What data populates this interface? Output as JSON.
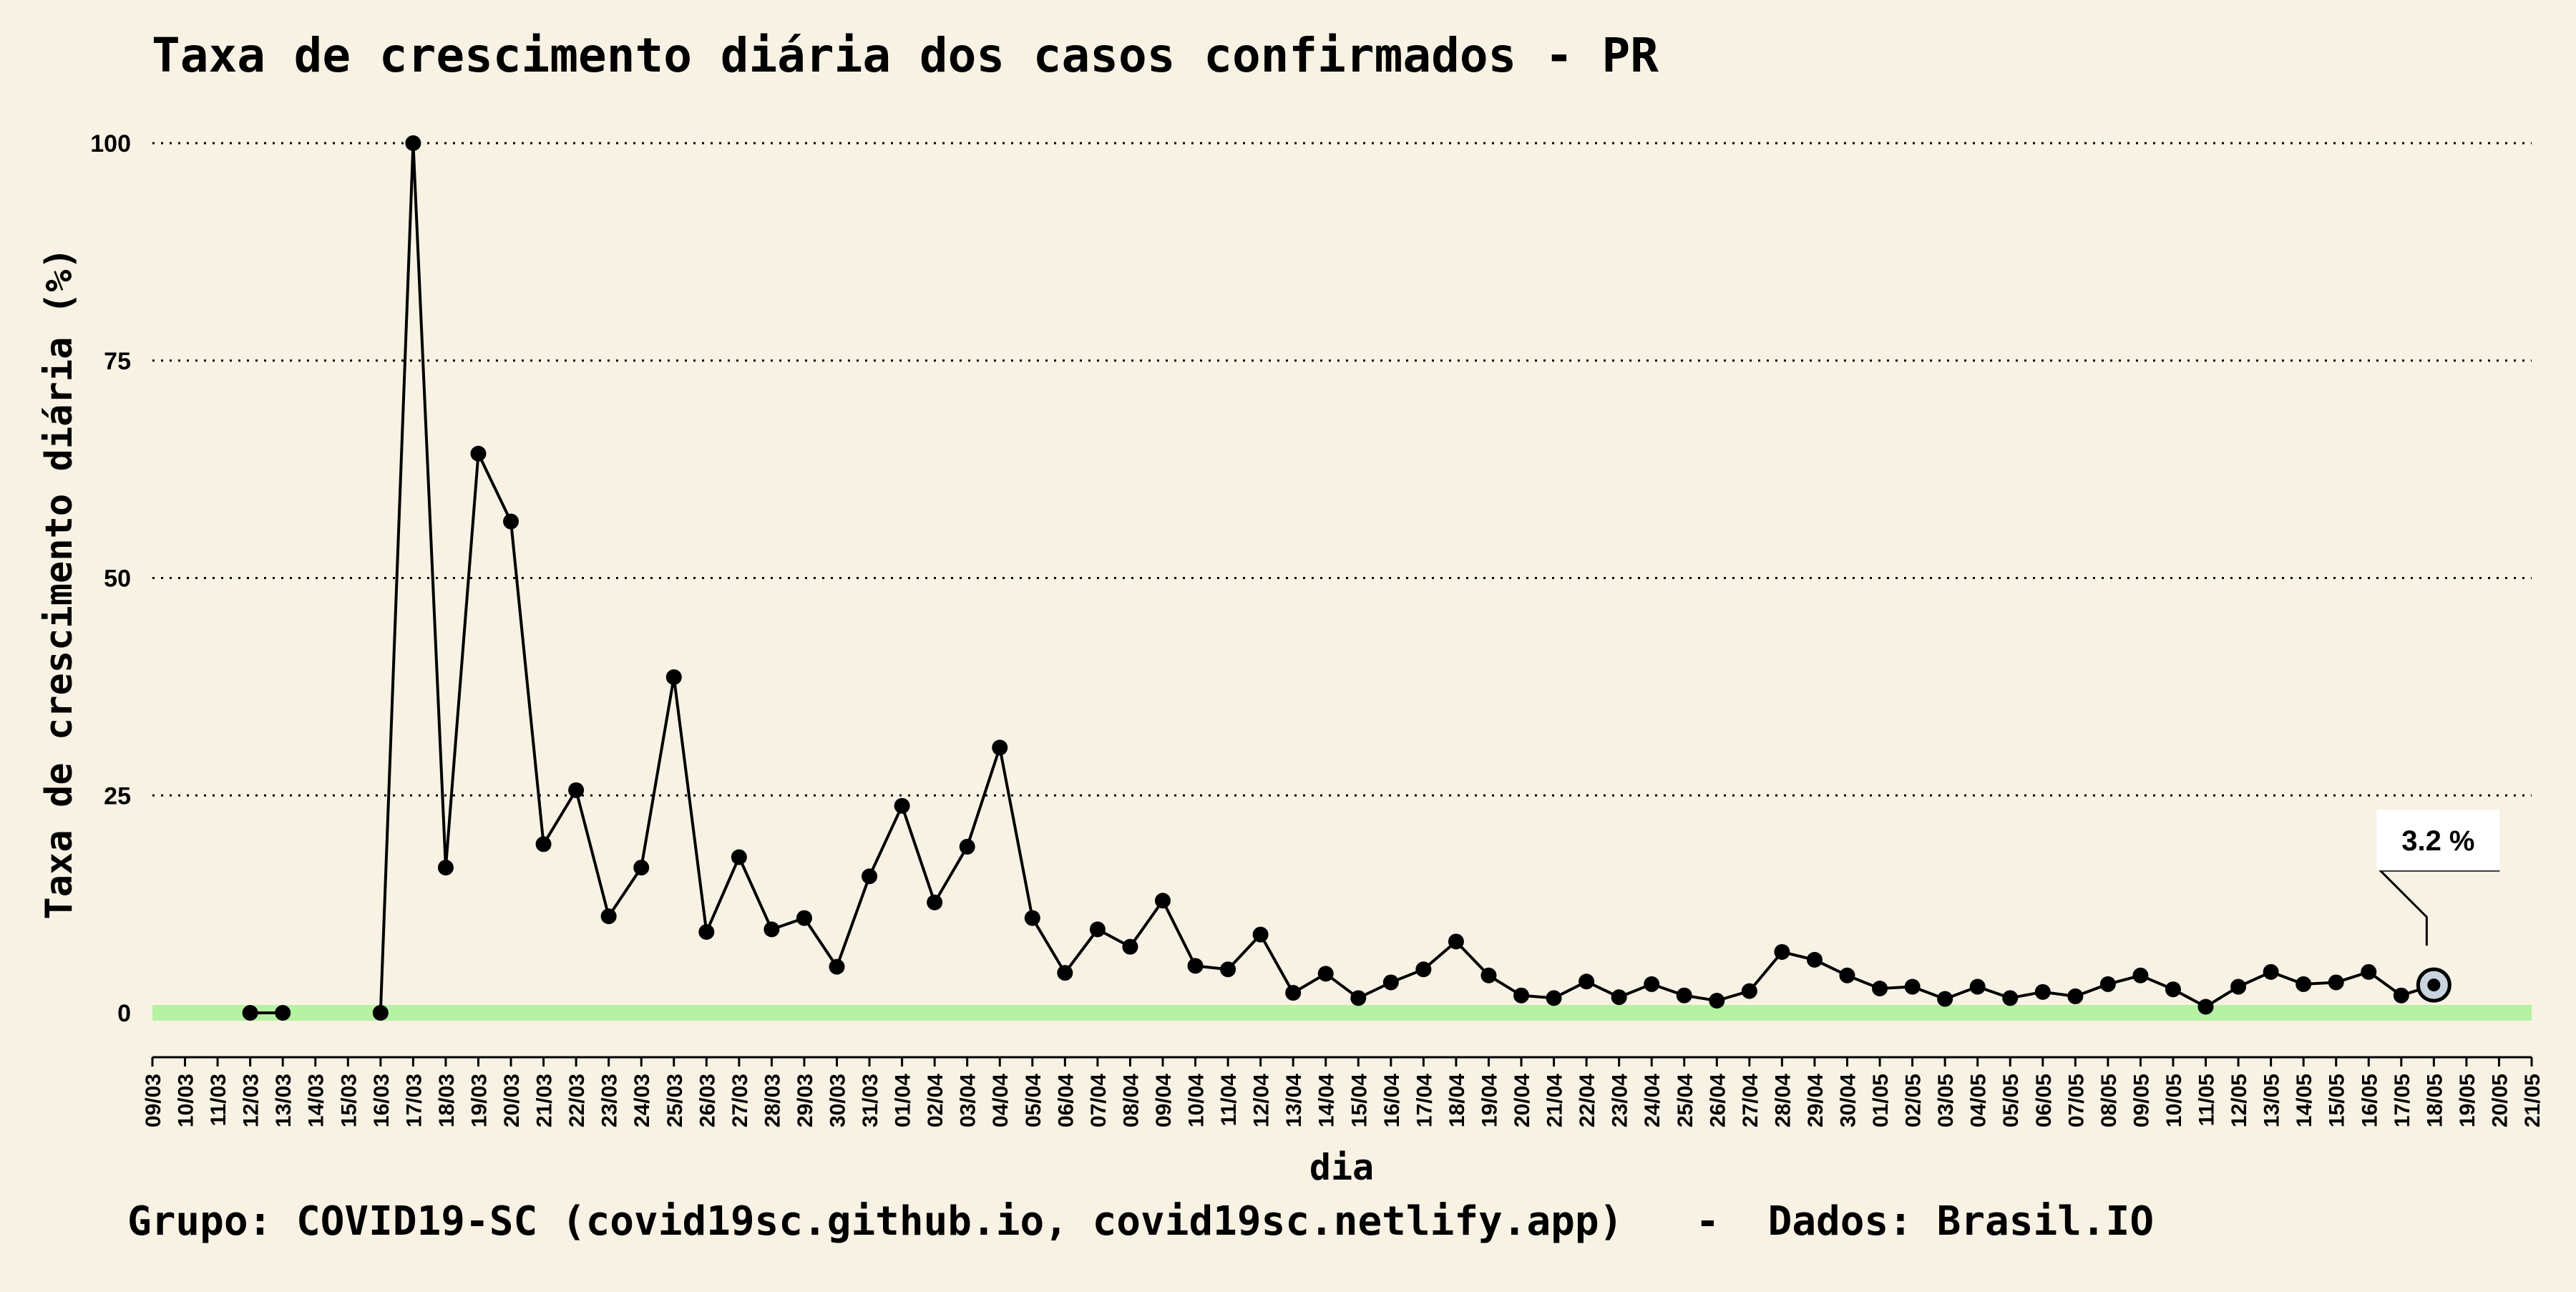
{
  "chart_data": {
    "type": "line",
    "title": "Taxa de crescimento diária dos casos confirmados - PR",
    "xlabel": "dia",
    "ylabel": "Taxa de crescimento diária (%)",
    "caption": "Grupo: COVID19-SC (covid19sc.github.io, covid19sc.netlify.app)   -  Dados: Brasil.IO",
    "ylim": [
      0,
      100
    ],
    "yticks": [
      0,
      25,
      50,
      75,
      100
    ],
    "grid": "horizontal dotted",
    "categories": [
      "09/03",
      "10/03",
      "11/03",
      "12/03",
      "13/03",
      "14/03",
      "15/03",
      "16/03",
      "17/03",
      "18/03",
      "19/03",
      "20/03",
      "21/03",
      "22/03",
      "23/03",
      "24/03",
      "25/03",
      "26/03",
      "27/03",
      "28/03",
      "29/03",
      "30/03",
      "31/03",
      "01/04",
      "02/04",
      "03/04",
      "04/04",
      "05/04",
      "06/04",
      "07/04",
      "08/04",
      "09/04",
      "10/04",
      "11/04",
      "12/04",
      "13/04",
      "14/04",
      "15/04",
      "16/04",
      "17/04",
      "18/04",
      "19/04",
      "20/04",
      "21/04",
      "22/04",
      "23/04",
      "24/04",
      "25/04",
      "26/04",
      "27/04",
      "28/04",
      "29/04",
      "30/04",
      "01/05",
      "02/05",
      "03/05",
      "04/05",
      "05/05",
      "06/05",
      "07/05",
      "08/05",
      "09/05",
      "10/05",
      "11/05",
      "12/05",
      "13/05",
      "14/05",
      "15/05",
      "16/05",
      "17/05",
      "18/05",
      "19/05",
      "20/05",
      "21/05"
    ],
    "series": [
      {
        "values": [
          null,
          null,
          null,
          0,
          0,
          null,
          null,
          0,
          100,
          16.7,
          64.3,
          56.5,
          19.4,
          25.6,
          11.1,
          16.7,
          38.6,
          9.3,
          17.9,
          9.6,
          10.9,
          5.3,
          15.7,
          23.8,
          12.7,
          19.1,
          30.5,
          10.9,
          4.6,
          9.6,
          7.6,
          12.9,
          5.4,
          5.0,
          9.0,
          2.3,
          4.5,
          1.7,
          3.5,
          5.0,
          8.2,
          4.3,
          2.0,
          1.7,
          3.6,
          1.8,
          3.3,
          2.0,
          1.4,
          2.5,
          7.0,
          6.1,
          4.3,
          2.8,
          3.0,
          1.6,
          3.0,
          1.7,
          2.4,
          1.9,
          3.3,
          4.3,
          2.7,
          0.7,
          3.0,
          4.7,
          3.3,
          3.5,
          4.7,
          2.0,
          3.2,
          null,
          null,
          null
        ]
      }
    ],
    "highlight": {
      "category": "18/05",
      "value": 3.2,
      "label": "3.2 %"
    },
    "colors": {
      "background": "#f8f2e4",
      "line": "#000000",
      "zero_band": "#b5f2a2",
      "highlight_fill": "#c9d3dd"
    }
  }
}
